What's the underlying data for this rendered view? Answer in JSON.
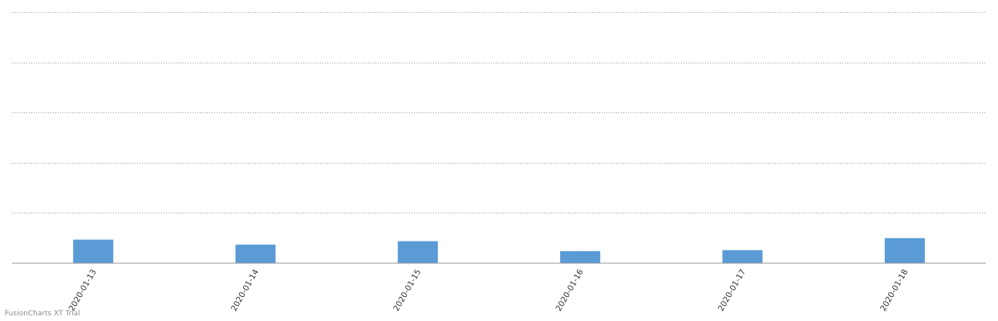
{
  "chart_data": {
    "type": "bar",
    "categories": [
      "2020-01-13",
      "2020-01-14",
      "2020-01-15",
      "2020-01-16",
      "2020-01-17",
      "2020-01-18"
    ],
    "values": [
      4.7,
      3.7,
      4.4,
      2.4,
      2.6,
      5.0
    ],
    "title": "",
    "xlabel": "",
    "ylabel": "",
    "ylim": [
      0,
      50
    ],
    "grid": true,
    "color": "#5b9bd5"
  },
  "watermark": "FusionCharts XT Trial"
}
